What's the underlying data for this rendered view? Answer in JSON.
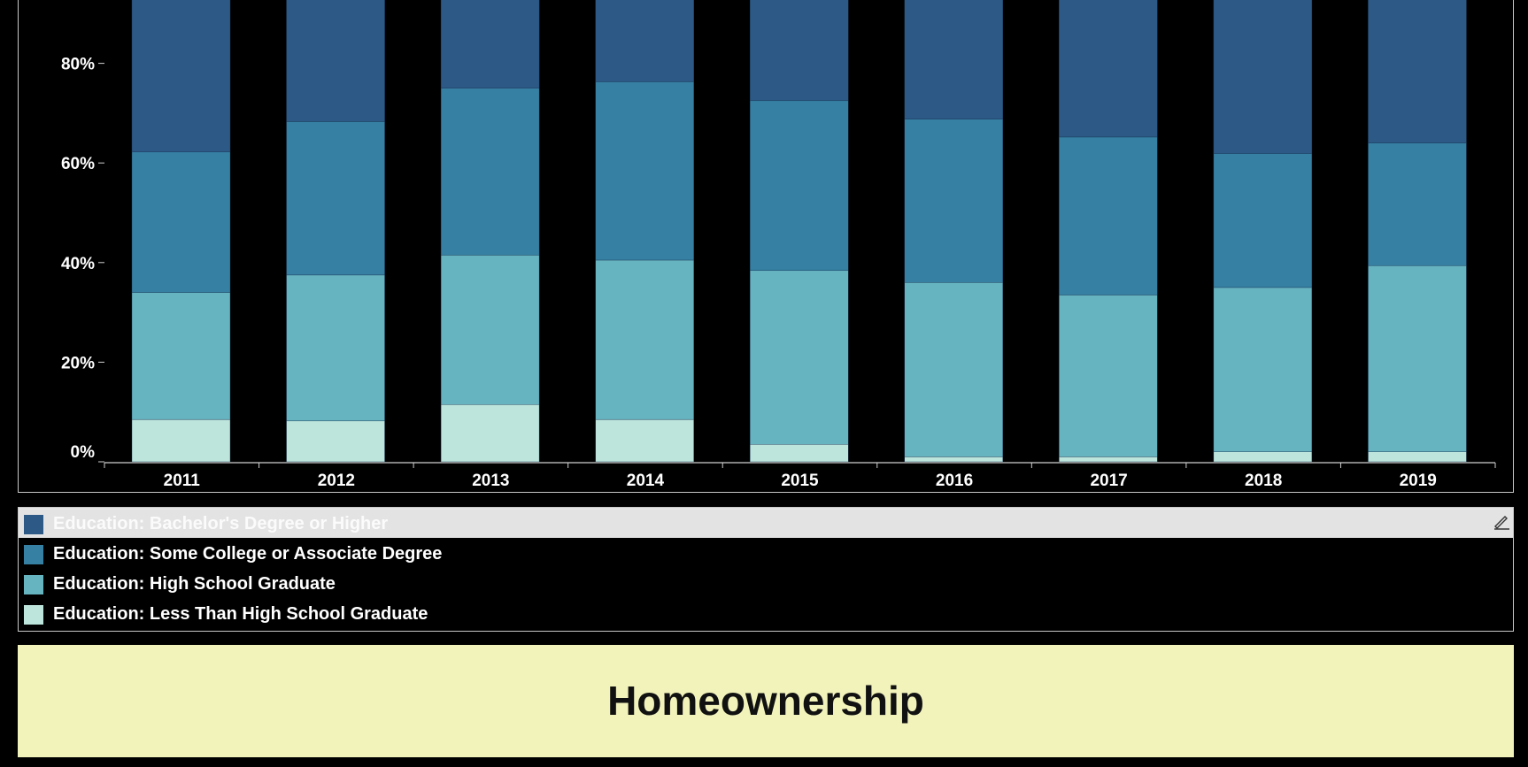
{
  "chart_data": {
    "type": "bar",
    "stacked": true,
    "categories": [
      "2011",
      "2012",
      "2013",
      "2014",
      "2015",
      "2016",
      "2017",
      "2018",
      "2019"
    ],
    "series": [
      {
        "name": "Education: Less Than High School Graduate",
        "color": "#bde5dc",
        "values": [
          8.5,
          8.2,
          11.5,
          8.5,
          3.5,
          1.0,
          1.0,
          2.0,
          2.0
        ]
      },
      {
        "name": "Education: High School Graduate",
        "color": "#67b4c1",
        "values": [
          25.5,
          29.3,
          30.0,
          32.0,
          34.9,
          35.0,
          32.5,
          33.0,
          37.4
        ]
      },
      {
        "name": "Education: Some College or Associate Degree",
        "color": "#3680a3",
        "values": [
          28.2,
          30.8,
          33.5,
          35.8,
          34.1,
          32.8,
          31.7,
          26.9,
          24.6
        ]
      },
      {
        "name": "Education: Bachelor's Degree or Higher",
        "color": "#2c5986",
        "values": [
          37.8,
          31.7,
          25.0,
          23.7,
          27.5,
          31.2,
          34.8,
          38.1,
          36.0
        ]
      }
    ],
    "ylim": [
      0,
      100
    ],
    "y_ticks": [
      0,
      20,
      40,
      60,
      80
    ],
    "y_tick_labels": [
      "0%",
      "20%",
      "40%",
      "60%",
      "80%"
    ],
    "legend_placement": "bottom",
    "legend_highlighted": "Education: Bachelor's Degree or Higher"
  },
  "legend": {
    "items": [
      {
        "label": "Education: Bachelor's Degree or Higher",
        "color": "#2c5986"
      },
      {
        "label": "Education: Some College or Associate Degree",
        "color": "#3680a3"
      },
      {
        "label": "Education: High School Graduate",
        "color": "#67b4c1"
      },
      {
        "label": "Education: Less Than High School Graduate",
        "color": "#bde5dc"
      }
    ],
    "edit_icon": "pencil-icon"
  },
  "banner": {
    "title": "Homeownership",
    "background": "#f2f3bb"
  }
}
